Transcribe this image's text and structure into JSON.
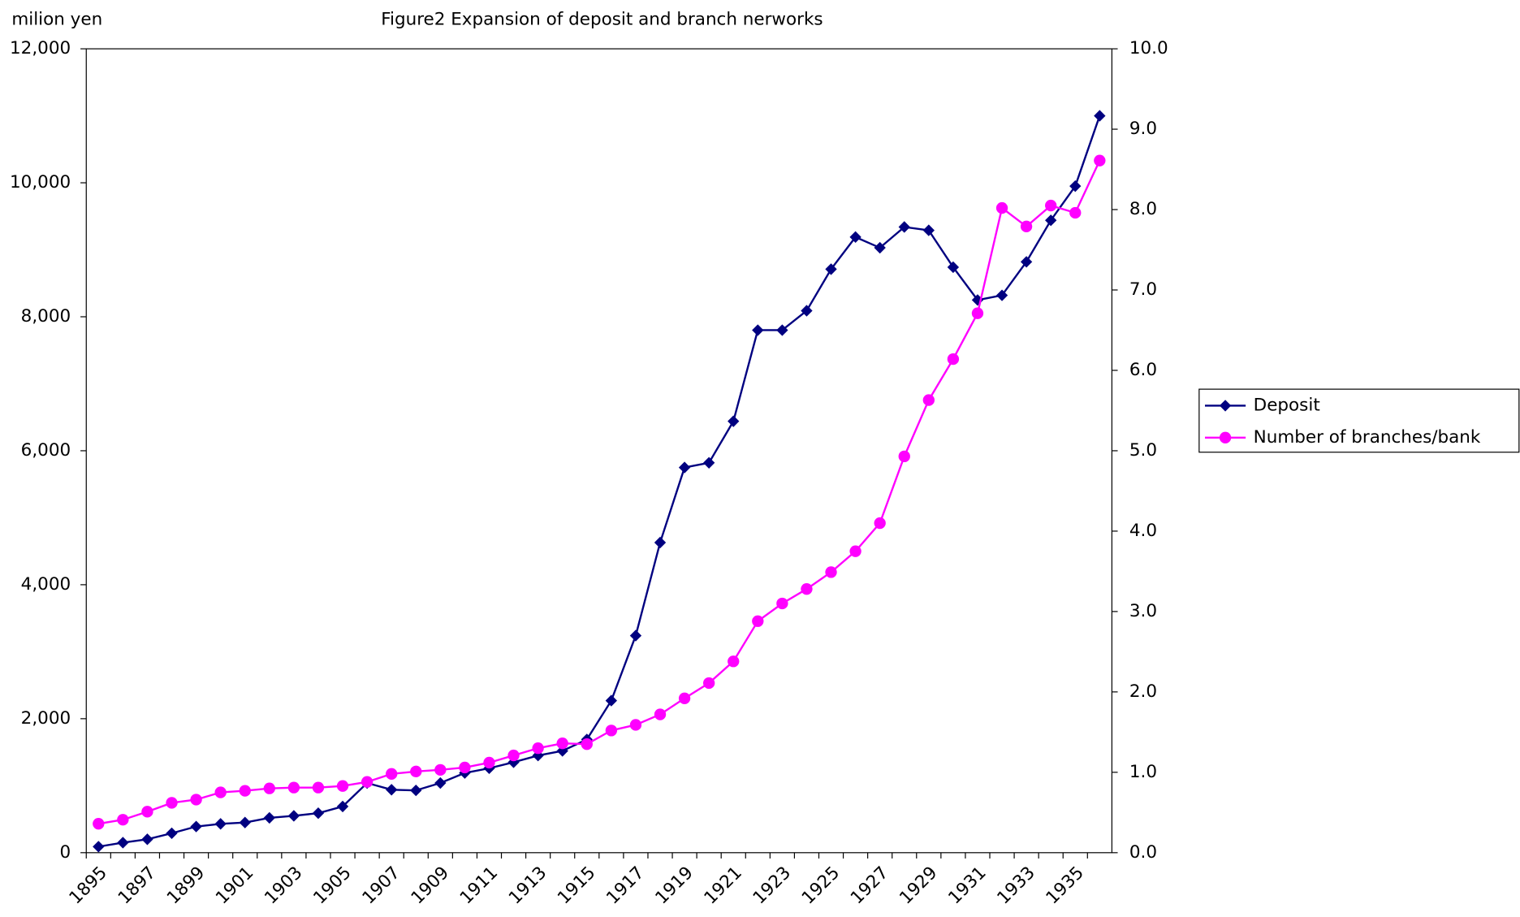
{
  "chart_data": {
    "type": "line",
    "title": "Figure2 Expansion of deposit and branch nerworks",
    "y_label": "milion yen",
    "categories": [
      "1895",
      null,
      "1897",
      null,
      "1899",
      null,
      "1901",
      null,
      "1903",
      null,
      "1905",
      null,
      "1907",
      null,
      "1909",
      null,
      "1911",
      null,
      "1913",
      null,
      "1915",
      null,
      "1917",
      null,
      "1919",
      null,
      "1921",
      null,
      "1923",
      null,
      "1925",
      null,
      "1927",
      null,
      "1929",
      null,
      "1931",
      null,
      "1933",
      null,
      "1935",
      null
    ],
    "series": [
      {
        "name": "Deposit",
        "color": "#000080",
        "marker": "diamond",
        "values": [
          90,
          150,
          200,
          290,
          390,
          430,
          450,
          520,
          550,
          590,
          690,
          1040,
          940,
          930,
          1040,
          1190,
          1260,
          1350,
          1450,
          1520,
          1690,
          2270,
          3240,
          4630,
          5750,
          5820,
          6440,
          7800,
          7800,
          8090,
          8710,
          9190,
          9030,
          9340,
          9290,
          8740,
          8250,
          8320,
          8820,
          9440,
          9950,
          11000
        ]
      },
      {
        "name": "Number of branches/bank",
        "color": "#ff00ff",
        "marker": "circle",
        "axis": "y2",
        "values": [
          0.36,
          0.41,
          0.51,
          0.62,
          0.66,
          0.75,
          0.77,
          0.8,
          0.81,
          0.81,
          0.83,
          0.88,
          0.98,
          1.01,
          1.03,
          1.06,
          1.12,
          1.21,
          1.3,
          1.36,
          1.35,
          1.52,
          1.59,
          1.72,
          1.92,
          2.11,
          2.38,
          2.88,
          3.1,
          3.28,
          3.49,
          3.75,
          4.1,
          4.93,
          5.63,
          6.14,
          6.71,
          8.02,
          7.79,
          8.05,
          7.96,
          8.61
        ]
      }
    ],
    "ylim": [
      0,
      12000
    ],
    "yticks": [
      0,
      {
        "value": 2000,
        "label": "2,000"
      },
      {
        "value": 4000,
        "label": "4,000"
      },
      {
        "value": 6000,
        "label": "6,000"
      },
      {
        "value": 8000,
        "label": "8,000"
      },
      {
        "value": 10000,
        "label": "10,000"
      },
      {
        "value": 12000,
        "label": "12,000"
      }
    ],
    "y2lim": [
      0,
      10
    ],
    "y2ticks": [
      {
        "value": 0,
        "label": "0.0"
      },
      {
        "value": 1,
        "label": "1.0"
      },
      {
        "value": 2,
        "label": "2.0"
      },
      {
        "value": 3,
        "label": "3.0"
      },
      {
        "value": 4,
        "label": "4.0"
      },
      {
        "value": 5,
        "label": "5.0"
      },
      {
        "value": 6,
        "label": "6.0"
      },
      {
        "value": 7,
        "label": "7.0"
      },
      {
        "value": 8,
        "label": "8.0"
      },
      {
        "value": 9,
        "label": "9.0"
      },
      {
        "value": 10,
        "label": "10.0"
      }
    ],
    "grid": false,
    "legend": "right"
  }
}
